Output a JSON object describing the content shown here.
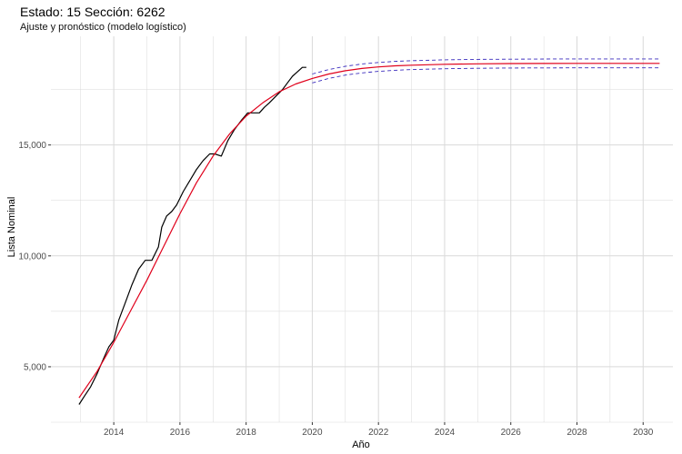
{
  "chart_data": {
    "type": "line",
    "title": "Estado: 15 Sección: 6262",
    "subtitle": "Ajuste y pronóstico (modelo logístico)",
    "xlabel": "Año",
    "ylabel": "Lista Nominal",
    "xlim": [
      2012.1,
      2030.9
    ],
    "ylim": [
      2500,
      19900
    ],
    "x_ticks": [
      2014,
      2016,
      2018,
      2020,
      2022,
      2024,
      2026,
      2028,
      2030
    ],
    "x_tick_labels": [
      "2014",
      "2016",
      "2018",
      "2020",
      "2022",
      "2024",
      "2026",
      "2028",
      "2030"
    ],
    "y_ticks": [
      5000,
      10000,
      15000
    ],
    "y_tick_labels": [
      "5,000",
      "10,000",
      "15,000"
    ],
    "grid": true,
    "colors": {
      "observed": "#000000",
      "fitted": "#e0001b",
      "interval": "#3a2bbd",
      "grid": "#d9d9d9"
    },
    "series": [
      {
        "kind": "observed",
        "x": [
          2012.95,
          2013.1,
          2013.3,
          2013.5,
          2013.7,
          2013.85,
          2014.0,
          2014.15,
          2014.35,
          2014.55,
          2014.75,
          2014.95,
          2015.15,
          2015.35,
          2015.45,
          2015.6,
          2015.75,
          2015.9,
          2016.1,
          2016.3,
          2016.5,
          2016.7,
          2016.9,
          2017.05,
          2017.25,
          2017.45,
          2017.65,
          2017.85,
          2018.05,
          2018.2,
          2018.4,
          2018.55,
          2018.7,
          2018.9,
          2019.1,
          2019.25,
          2019.4,
          2019.55,
          2019.7,
          2019.82
        ],
        "values": [
          3300,
          3650,
          4100,
          4700,
          5400,
          5900,
          6200,
          7100,
          7900,
          8700,
          9400,
          9800,
          9800,
          10400,
          11300,
          11800,
          12000,
          12300,
          12900,
          13400,
          13900,
          14300,
          14600,
          14600,
          14500,
          15200,
          15700,
          16100,
          16450,
          16450,
          16450,
          16700,
          16900,
          17200,
          17500,
          17800,
          18100,
          18300,
          18500,
          18500
        ]
      },
      {
        "kind": "fitted",
        "x": [
          2012.95,
          2013.5,
          2014.0,
          2014.5,
          2015.0,
          2015.5,
          2016.0,
          2016.5,
          2017.0,
          2017.5,
          2018.0,
          2018.5,
          2019.0,
          2019.5,
          2020.0,
          2020.5,
          2021.0,
          2021.5,
          2022.0,
          2022.5,
          2023.0,
          2024.0,
          2025.0,
          2026.0,
          2027.0,
          2028.0,
          2029.0,
          2030.0,
          2030.5
        ],
        "values": [
          3600,
          4800,
          6100,
          7500,
          8900,
          10400,
          11900,
          13300,
          14500,
          15500,
          16300,
          16900,
          17400,
          17750,
          18000,
          18200,
          18350,
          18450,
          18520,
          18570,
          18600,
          18640,
          18660,
          18670,
          18675,
          18680,
          18680,
          18680,
          18680
        ]
      },
      {
        "kind": "upper",
        "x": [
          2020.0,
          2020.5,
          2021.0,
          2021.5,
          2022.0,
          2022.5,
          2023.0,
          2024.0,
          2025.0,
          2026.0,
          2027.0,
          2028.0,
          2029.0,
          2030.0,
          2030.5
        ],
        "values": [
          18200,
          18400,
          18550,
          18650,
          18720,
          18770,
          18800,
          18840,
          18860,
          18870,
          18875,
          18880,
          18880,
          18880,
          18880
        ]
      },
      {
        "kind": "lower",
        "x": [
          2020.0,
          2020.5,
          2021.0,
          2021.5,
          2022.0,
          2022.5,
          2023.0,
          2024.0,
          2025.0,
          2026.0,
          2027.0,
          2028.0,
          2029.0,
          2030.0,
          2030.5
        ],
        "values": [
          17800,
          18000,
          18150,
          18250,
          18320,
          18370,
          18400,
          18440,
          18460,
          18470,
          18475,
          18480,
          18480,
          18480,
          18480
        ]
      }
    ]
  }
}
